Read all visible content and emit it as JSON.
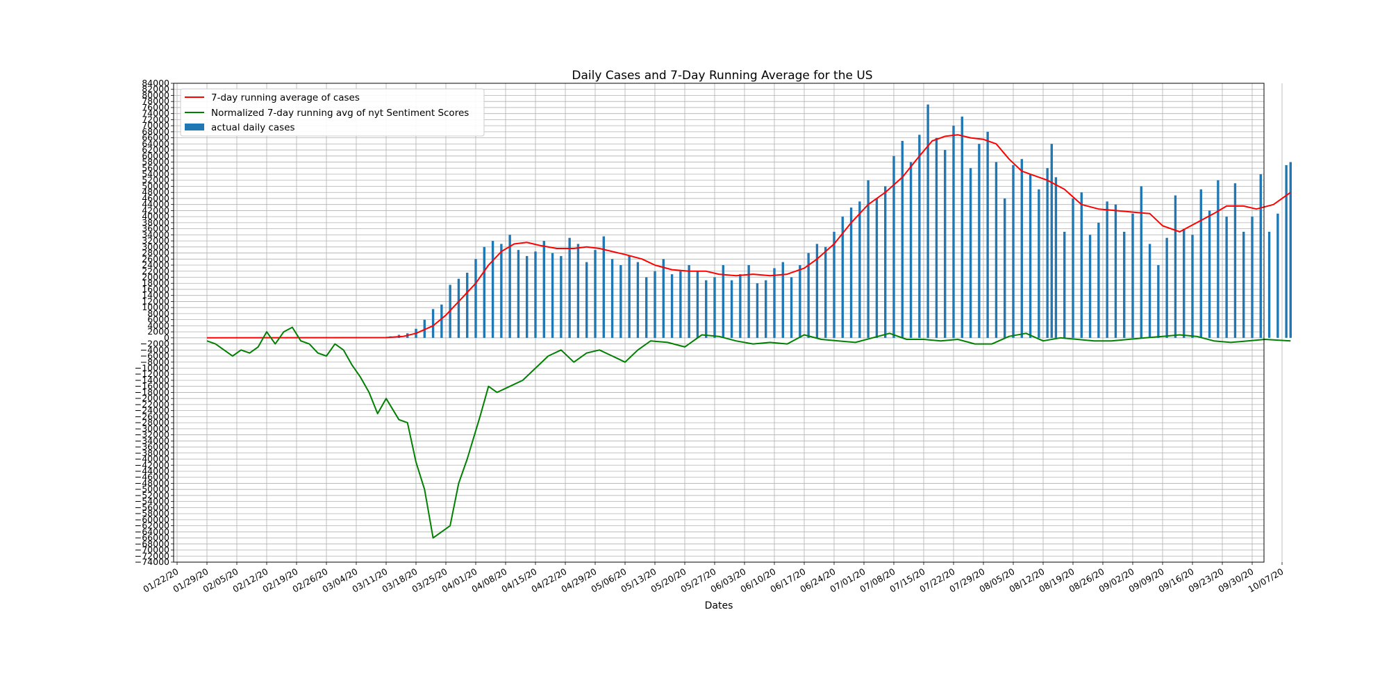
{
  "chart_data": {
    "type": "bar",
    "title": "Daily Cases and 7-Day Running Average for the US",
    "xlabel": "Dates",
    "ylabel": "",
    "ylim": [
      -74000,
      84000
    ],
    "ytick_step": 2000,
    "grid": true,
    "legend_position": "top-left",
    "x_tick_labels": [
      "01/22/20",
      "01/29/20",
      "02/05/20",
      "02/12/20",
      "02/19/20",
      "02/26/20",
      "03/04/20",
      "03/11/20",
      "03/18/20",
      "03/25/20",
      "04/01/20",
      "04/08/20",
      "04/15/20",
      "04/22/20",
      "04/29/20",
      "05/06/20",
      "05/13/20",
      "05/20/20",
      "05/27/20",
      "06/03/20",
      "06/10/20",
      "06/17/20",
      "06/24/20",
      "07/01/20",
      "07/08/20",
      "07/15/20",
      "07/22/20",
      "07/29/20",
      "08/05/20",
      "08/12/20",
      "08/19/20",
      "08/26/20",
      "09/02/20",
      "09/09/20",
      "09/16/20",
      "09/23/20",
      "09/30/20",
      "10/07/20"
    ],
    "series": [
      {
        "name": "7-day running average of cases",
        "kind": "line",
        "color": "#ff0000",
        "points": [
          [
            "01/29/20",
            0
          ],
          [
            "03/11/20",
            100
          ],
          [
            "03/15/20",
            500
          ],
          [
            "03/18/20",
            1500
          ],
          [
            "03/22/20",
            4000
          ],
          [
            "03/25/20",
            7500
          ],
          [
            "03/29/20",
            13500
          ],
          [
            "04/01/20",
            18000
          ],
          [
            "04/04/20",
            24000
          ],
          [
            "04/07/20",
            28500
          ],
          [
            "04/10/20",
            31000
          ],
          [
            "04/13/20",
            31500
          ],
          [
            "04/16/20",
            30500
          ],
          [
            "04/20/20",
            29500
          ],
          [
            "04/24/20",
            29500
          ],
          [
            "04/27/20",
            30000
          ],
          [
            "04/30/20",
            29500
          ],
          [
            "05/03/20",
            28500
          ],
          [
            "05/06/20",
            27500
          ],
          [
            "05/10/20",
            26000
          ],
          [
            "05/13/20",
            24000
          ],
          [
            "05/17/20",
            22500
          ],
          [
            "05/21/20",
            22000
          ],
          [
            "05/25/20",
            22000
          ],
          [
            "05/28/20",
            21000
          ],
          [
            "06/01/20",
            20500
          ],
          [
            "06/05/20",
            21000
          ],
          [
            "06/09/20",
            20500
          ],
          [
            "06/13/20",
            21000
          ],
          [
            "06/17/20",
            23000
          ],
          [
            "06/20/20",
            26000
          ],
          [
            "06/24/20",
            31000
          ],
          [
            "06/28/20",
            38000
          ],
          [
            "07/02/20",
            44000
          ],
          [
            "07/06/20",
            48000
          ],
          [
            "07/10/20",
            53000
          ],
          [
            "07/14/20",
            60000
          ],
          [
            "07/17/20",
            65000
          ],
          [
            "07/20/20",
            66500
          ],
          [
            "07/23/20",
            67000
          ],
          [
            "07/26/20",
            66000
          ],
          [
            "07/29/20",
            65500
          ],
          [
            "08/01/20",
            64000
          ],
          [
            "08/04/20",
            59000
          ],
          [
            "08/07/20",
            55000
          ],
          [
            "08/10/20",
            53500
          ],
          [
            "08/13/20",
            52000
          ],
          [
            "08/17/20",
            49000
          ],
          [
            "08/21/20",
            44000
          ],
          [
            "08/25/20",
            42500
          ],
          [
            "08/29/20",
            42000
          ],
          [
            "09/02/20",
            41500
          ],
          [
            "09/06/20",
            41000
          ],
          [
            "09/09/20",
            37000
          ],
          [
            "09/13/20",
            35000
          ],
          [
            "09/17/20",
            38000
          ],
          [
            "09/21/20",
            41000
          ],
          [
            "09/24/20",
            43500
          ],
          [
            "09/28/20",
            43500
          ],
          [
            "10/01/20",
            42500
          ],
          [
            "10/05/20",
            44000
          ],
          [
            "10/09/20",
            48000
          ]
        ]
      },
      {
        "name": "Normalized 7-day running avg of nyt Sentiment Scores",
        "kind": "line",
        "color": "#008000",
        "points": [
          [
            "01/29/20",
            -1000
          ],
          [
            "01/31/20",
            -2000
          ],
          [
            "02/02/20",
            -4000
          ],
          [
            "02/04/20",
            -6000
          ],
          [
            "02/06/20",
            -4000
          ],
          [
            "02/08/20",
            -5000
          ],
          [
            "02/10/20",
            -3000
          ],
          [
            "02/12/20",
            2000
          ],
          [
            "02/14/20",
            -2000
          ],
          [
            "02/16/20",
            2000
          ],
          [
            "02/18/20",
            3500
          ],
          [
            "02/20/20",
            -1000
          ],
          [
            "02/22/20",
            -2000
          ],
          [
            "02/24/20",
            -5000
          ],
          [
            "02/26/20",
            -6000
          ],
          [
            "02/28/20",
            -2000
          ],
          [
            "03/01/20",
            -4000
          ],
          [
            "03/03/20",
            -9000
          ],
          [
            "03/05/20",
            -13000
          ],
          [
            "03/07/20",
            -18000
          ],
          [
            "03/09/20",
            -25000
          ],
          [
            "03/11/20",
            -20000
          ],
          [
            "03/14/20",
            -27000
          ],
          [
            "03/16/20",
            -28000
          ],
          [
            "03/18/20",
            -41000
          ],
          [
            "03/20/20",
            -50000
          ],
          [
            "03/22/20",
            -66000
          ],
          [
            "03/24/20",
            -64000
          ],
          [
            "03/26/20",
            -62000
          ],
          [
            "03/28/20",
            -48000
          ],
          [
            "03/30/20",
            -40000
          ],
          [
            "04/02/20",
            -26000
          ],
          [
            "04/04/20",
            -16000
          ],
          [
            "04/06/20",
            -18000
          ],
          [
            "04/09/20",
            -16000
          ],
          [
            "04/12/20",
            -14000
          ],
          [
            "04/15/20",
            -10000
          ],
          [
            "04/18/20",
            -6000
          ],
          [
            "04/21/20",
            -4000
          ],
          [
            "04/24/20",
            -8000
          ],
          [
            "04/27/20",
            -5000
          ],
          [
            "04/30/20",
            -4000
          ],
          [
            "05/03/20",
            -6000
          ],
          [
            "05/06/20",
            -8000
          ],
          [
            "05/09/20",
            -4000
          ],
          [
            "05/12/20",
            -1000
          ],
          [
            "05/16/20",
            -1500
          ],
          [
            "05/20/20",
            -3000
          ],
          [
            "05/24/20",
            1000
          ],
          [
            "05/28/20",
            500
          ],
          [
            "06/01/20",
            -1000
          ],
          [
            "06/05/20",
            -2000
          ],
          [
            "06/09/20",
            -1500
          ],
          [
            "06/13/20",
            -2000
          ],
          [
            "06/17/20",
            1000
          ],
          [
            "06/21/20",
            -500
          ],
          [
            "06/25/20",
            -1000
          ],
          [
            "06/29/20",
            -1500
          ],
          [
            "07/03/20",
            0
          ],
          [
            "07/07/20",
            1500
          ],
          [
            "07/11/20",
            -500
          ],
          [
            "07/15/20",
            -500
          ],
          [
            "07/19/20",
            -1000
          ],
          [
            "07/23/20",
            -500
          ],
          [
            "07/27/20",
            -2000
          ],
          [
            "07/31/20",
            -2000
          ],
          [
            "08/04/20",
            500
          ],
          [
            "08/08/20",
            1500
          ],
          [
            "08/12/20",
            -1000
          ],
          [
            "08/16/20",
            0
          ],
          [
            "08/20/20",
            -500
          ],
          [
            "08/24/20",
            -1000
          ],
          [
            "08/28/20",
            -1000
          ],
          [
            "09/01/20",
            -500
          ],
          [
            "09/05/20",
            0
          ],
          [
            "09/09/20",
            500
          ],
          [
            "09/13/20",
            1000
          ],
          [
            "09/17/20",
            500
          ],
          [
            "09/21/20",
            -1000
          ],
          [
            "09/25/20",
            -1500
          ],
          [
            "09/29/20",
            -1000
          ],
          [
            "10/03/20",
            -500
          ],
          [
            "10/09/20",
            -1000
          ]
        ]
      },
      {
        "name": "actual daily cases",
        "kind": "bar",
        "color": "#1f77b4",
        "points": [
          [
            "03/08/20",
            100
          ],
          [
            "03/10/20",
            300
          ],
          [
            "03/12/20",
            500
          ],
          [
            "03/14/20",
            1000
          ],
          [
            "03/16/20",
            1500
          ],
          [
            "03/18/20",
            3000
          ],
          [
            "03/20/20",
            6000
          ],
          [
            "03/22/20",
            9500
          ],
          [
            "03/24/20",
            11000
          ],
          [
            "03/26/20",
            17500
          ],
          [
            "03/28/20",
            19500
          ],
          [
            "03/30/20",
            21500
          ],
          [
            "04/01/20",
            26000
          ],
          [
            "04/03/20",
            30000
          ],
          [
            "04/05/20",
            32000
          ],
          [
            "04/07/20",
            31000
          ],
          [
            "04/09/20",
            34000
          ],
          [
            "04/11/20",
            29000
          ],
          [
            "04/13/20",
            27000
          ],
          [
            "04/15/20",
            28500
          ],
          [
            "04/17/20",
            32000
          ],
          [
            "04/19/20",
            28000
          ],
          [
            "04/21/20",
            27000
          ],
          [
            "04/23/20",
            33000
          ],
          [
            "04/25/20",
            31000
          ],
          [
            "04/27/20",
            25000
          ],
          [
            "04/29/20",
            29000
          ],
          [
            "05/01/20",
            33500
          ],
          [
            "05/03/20",
            26000
          ],
          [
            "05/05/20",
            24000
          ],
          [
            "05/07/20",
            27000
          ],
          [
            "05/09/20",
            25000
          ],
          [
            "05/11/20",
            20000
          ],
          [
            "05/13/20",
            22000
          ],
          [
            "05/15/20",
            26000
          ],
          [
            "05/17/20",
            21000
          ],
          [
            "05/19/20",
            22000
          ],
          [
            "05/21/20",
            24000
          ],
          [
            "05/23/20",
            22000
          ],
          [
            "05/25/20",
            19000
          ],
          [
            "05/27/20",
            20000
          ],
          [
            "05/29/20",
            24000
          ],
          [
            "05/31/20",
            19000
          ],
          [
            "06/02/20",
            21000
          ],
          [
            "06/04/20",
            24000
          ],
          [
            "06/06/20",
            18000
          ],
          [
            "06/08/20",
            19000
          ],
          [
            "06/10/20",
            23000
          ],
          [
            "06/12/20",
            25000
          ],
          [
            "06/14/20",
            20000
          ],
          [
            "06/16/20",
            24000
          ],
          [
            "06/18/20",
            28000
          ],
          [
            "06/20/20",
            31000
          ],
          [
            "06/22/20",
            30000
          ],
          [
            "06/24/20",
            35000
          ],
          [
            "06/26/20",
            40000
          ],
          [
            "06/28/20",
            43000
          ],
          [
            "06/30/20",
            45000
          ],
          [
            "07/02/20",
            52000
          ],
          [
            "07/04/20",
            46000
          ],
          [
            "07/06/20",
            50000
          ],
          [
            "07/08/20",
            60000
          ],
          [
            "07/10/20",
            65000
          ],
          [
            "07/12/20",
            58000
          ],
          [
            "07/14/20",
            67000
          ],
          [
            "07/16/20",
            77000
          ],
          [
            "07/18/20",
            66000
          ],
          [
            "07/20/20",
            62000
          ],
          [
            "07/22/20",
            70000
          ],
          [
            "07/24/20",
            73000
          ],
          [
            "07/26/20",
            56000
          ],
          [
            "07/28/20",
            64000
          ],
          [
            "07/30/20",
            68000
          ],
          [
            "08/01/20",
            58000
          ],
          [
            "08/03/20",
            46000
          ],
          [
            "08/05/20",
            57000
          ],
          [
            "08/07/20",
            59000
          ],
          [
            "08/09/20",
            54000
          ],
          [
            "08/11/20",
            49000
          ],
          [
            "08/13/20",
            56000
          ],
          [
            "08/14/20",
            64000
          ],
          [
            "08/15/20",
            53000
          ],
          [
            "08/17/20",
            35000
          ],
          [
            "08/19/20",
            46000
          ],
          [
            "08/21/20",
            48000
          ],
          [
            "08/23/20",
            34000
          ],
          [
            "08/25/20",
            38000
          ],
          [
            "08/27/20",
            45000
          ],
          [
            "08/29/20",
            44000
          ],
          [
            "08/31/20",
            35000
          ],
          [
            "09/02/20",
            41000
          ],
          [
            "09/04/20",
            50000
          ],
          [
            "09/06/20",
            31000
          ],
          [
            "09/08/20",
            24000
          ],
          [
            "09/10/20",
            33000
          ],
          [
            "09/12/20",
            47000
          ],
          [
            "09/14/20",
            36000
          ],
          [
            "09/16/20",
            34000
          ],
          [
            "09/18/20",
            49000
          ],
          [
            "09/20/20",
            42000
          ],
          [
            "09/22/20",
            52000
          ],
          [
            "09/24/20",
            40000
          ],
          [
            "09/26/20",
            51000
          ],
          [
            "09/28/20",
            35000
          ],
          [
            "09/30/20",
            40000
          ],
          [
            "10/02/20",
            54000
          ],
          [
            "10/04/20",
            35000
          ],
          [
            "10/06/20",
            41000
          ],
          [
            "10/08/20",
            57000
          ],
          [
            "10/09/20",
            58000
          ]
        ]
      }
    ]
  }
}
